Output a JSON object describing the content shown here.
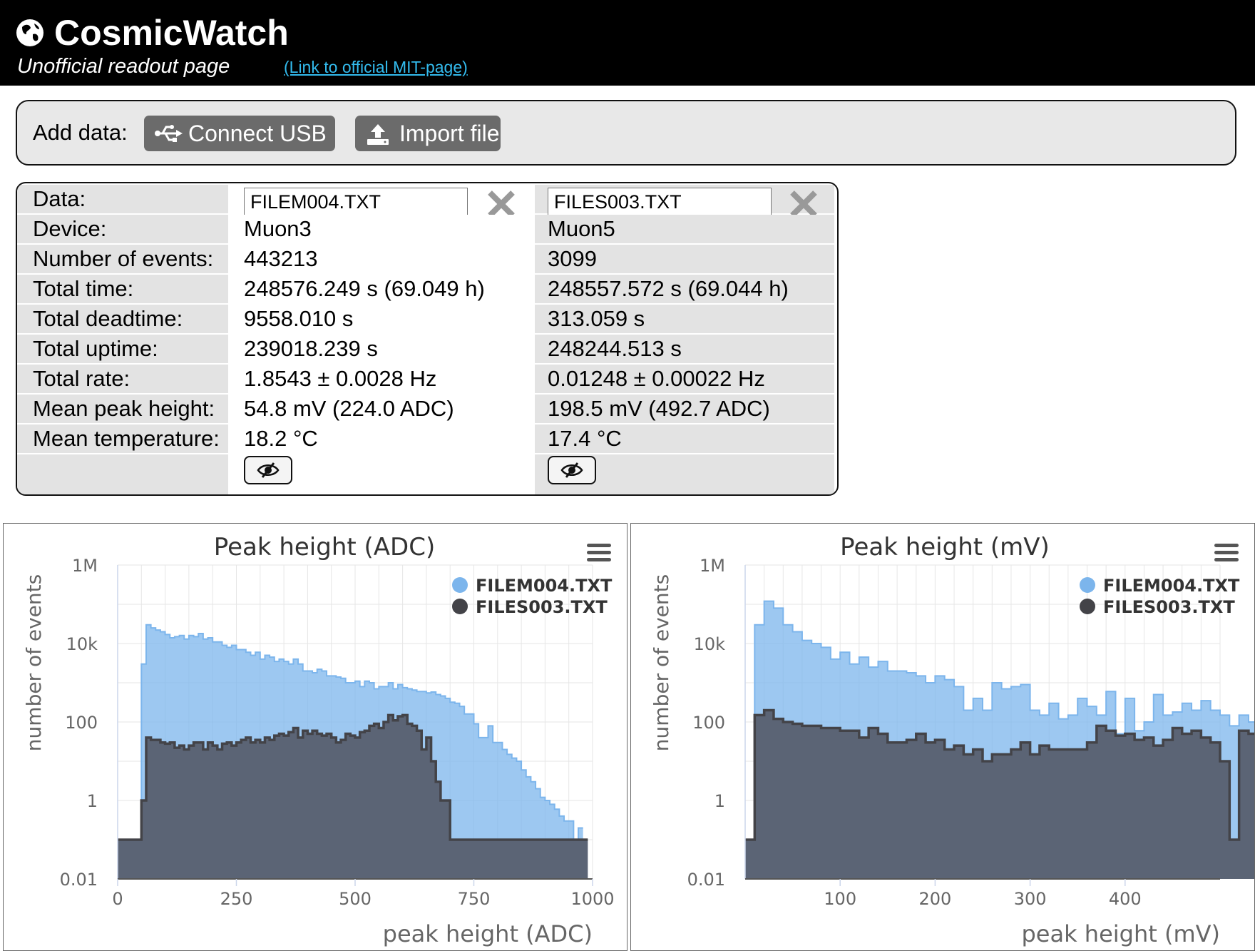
{
  "header": {
    "title": "CosmicWatch",
    "subtitle": "Unofficial readout page",
    "link": "(Link to official MIT-page)"
  },
  "add_data": {
    "label": "Add data:",
    "usb_button": "Connect USB",
    "import_button": "Import file"
  },
  "info": {
    "labels": [
      "Data:",
      "Device:",
      "Number of events:",
      "Total time:",
      "Total deadtime:",
      "Total uptime:",
      "Total rate:",
      "Mean peak height:",
      "Mean temperature:"
    ],
    "files": [
      {
        "filename": "FILEM004.TXT",
        "device": "Muon3",
        "events": "443213",
        "total_time": "248576.249 s (69.049 h)",
        "deadtime": "9558.010 s",
        "uptime": "239018.239 s",
        "rate": "1.8543 ± 0.0028 Hz",
        "mean_peak": "54.8 mV (224.0 ADC)",
        "mean_temp": "18.2 °C"
      },
      {
        "filename": "FILES003.TXT",
        "device": "Muon5",
        "events": "3099",
        "total_time": "248557.572 s (69.044 h)",
        "deadtime": "313.059 s",
        "uptime": "248244.513 s",
        "rate": "0.01248 ± 0.00022 Hz",
        "mean_peak": "198.5 mV (492.7 ADC)",
        "mean_temp": "17.4 °C"
      }
    ]
  },
  "chart_data": [
    {
      "type": "area",
      "title": "Peak height (ADC)",
      "xlabel": "peak height (ADC)",
      "ylabel": "number of events",
      "xlim": [
        0,
        1000
      ],
      "ylim": [
        0.01,
        1000000
      ],
      "yscale": "log",
      "xticks": [
        "0",
        "250",
        "500",
        "750",
        "1000"
      ],
      "yticks": [
        "0.01",
        "1",
        "100",
        "10k",
        "1M"
      ],
      "legend_position": "top-right",
      "bin_width": 10,
      "x_start": 0,
      "series": [
        {
          "name": "FILEM004.TXT",
          "color": "#7cb5ec",
          "values": [
            0.1,
            0.1,
            0.1,
            0.1,
            0.1,
            3000,
            30000,
            25000,
            22000,
            20000,
            17000,
            14000,
            15000,
            16000,
            13000,
            16000,
            15000,
            18000,
            13000,
            14000,
            11000,
            11000,
            9000,
            8000,
            9000,
            7000,
            7000,
            6000,
            5000,
            6000,
            4000,
            5000,
            4500,
            3500,
            4000,
            3500,
            3000,
            4000,
            3000,
            2000,
            2000,
            1800,
            2200,
            2000,
            1500,
            1500,
            1400,
            1300,
            1000,
            1000,
            1100,
            800,
            1100,
            1000,
            700,
            800,
            800,
            1000,
            700,
            900,
            750,
            700,
            650,
            600,
            600,
            550,
            580,
            500,
            460,
            400,
            320,
            300,
            250,
            160,
            160,
            90,
            40,
            40,
            80,
            30,
            30,
            20,
            15,
            12,
            10,
            6,
            4,
            3,
            2,
            1.2,
            1,
            0.8,
            0.6,
            0.4,
            0.3,
            0.3,
            0.1,
            0.2
          ]
        },
        {
          "name": "FILES003.TXT",
          "color": "#434348",
          "values": [
            0.1,
            0.1,
            0.1,
            0.1,
            0.1,
            1,
            40,
            35,
            35,
            30,
            28,
            30,
            22,
            25,
            20,
            25,
            30,
            30,
            20,
            30,
            25,
            20,
            28,
            30,
            25,
            30,
            35,
            40,
            30,
            35,
            30,
            40,
            35,
            45,
            50,
            45,
            55,
            70,
            40,
            60,
            50,
            60,
            50,
            45,
            50,
            40,
            30,
            35,
            50,
            45,
            40,
            55,
            60,
            80,
            90,
            70,
            100,
            150,
            110,
            140,
            150,
            90,
            80,
            60,
            20,
            40,
            10,
            3,
            1,
            1,
            0.1,
            0.1,
            0.1,
            0.1,
            0.1,
            0.1,
            0.1,
            0.1,
            0.1,
            0.1,
            0.1,
            0.1,
            0.1,
            0.1,
            0.1,
            0.1,
            0.1,
            0.1,
            0.1,
            0.1,
            0.1,
            0.1,
            0.1,
            0.1,
            0.1,
            0.1,
            0.1,
            0.1,
            0.1
          ]
        }
      ]
    },
    {
      "type": "area",
      "title": "Peak height (mV)",
      "xlabel": "peak height (mV)",
      "ylabel": "number of events",
      "xlim": [
        0,
        500
      ],
      "ylim": [
        0.01,
        1000000
      ],
      "yscale": "log",
      "xticks": [
        "100",
        "200",
        "300",
        "400"
      ],
      "yticks": [
        "0.01",
        "1",
        "100",
        "10k",
        "1M"
      ],
      "legend_position": "top-right",
      "bin_width": 10,
      "x_start": 0,
      "series": [
        {
          "name": "FILEM004.TXT",
          "color": "#7cb5ec",
          "values": [
            0.1,
            30000,
            120000,
            80000,
            30000,
            20000,
            12000,
            10000,
            8000,
            4000,
            6000,
            3000,
            4500,
            2500,
            3500,
            2000,
            2000,
            1800,
            1500,
            1000,
            1500,
            1200,
            800,
            200,
            400,
            200,
            1000,
            700,
            800,
            900,
            200,
            150,
            300,
            120,
            150,
            400,
            250,
            150,
            600,
            50,
            400,
            60,
            100,
            500,
            150,
            180,
            300,
            200,
            350,
            200,
            150,
            80,
            150,
            100,
            0.1,
            60,
            50
          ]
        },
        {
          "name": "FILES003.TXT",
          "color": "#434348",
          "values": [
            0.1,
            150,
            200,
            120,
            100,
            90,
            80,
            80,
            70,
            70,
            60,
            60,
            40,
            70,
            50,
            30,
            30,
            35,
            50,
            30,
            35,
            20,
            25,
            15,
            20,
            10,
            15,
            15,
            20,
            30,
            15,
            25,
            20,
            20,
            20,
            20,
            30,
            80,
            60,
            45,
            50,
            35,
            40,
            25,
            35,
            70,
            50,
            60,
            40,
            30,
            10,
            0.1,
            60,
            50,
            0.1,
            30,
            10
          ]
        }
      ]
    }
  ]
}
